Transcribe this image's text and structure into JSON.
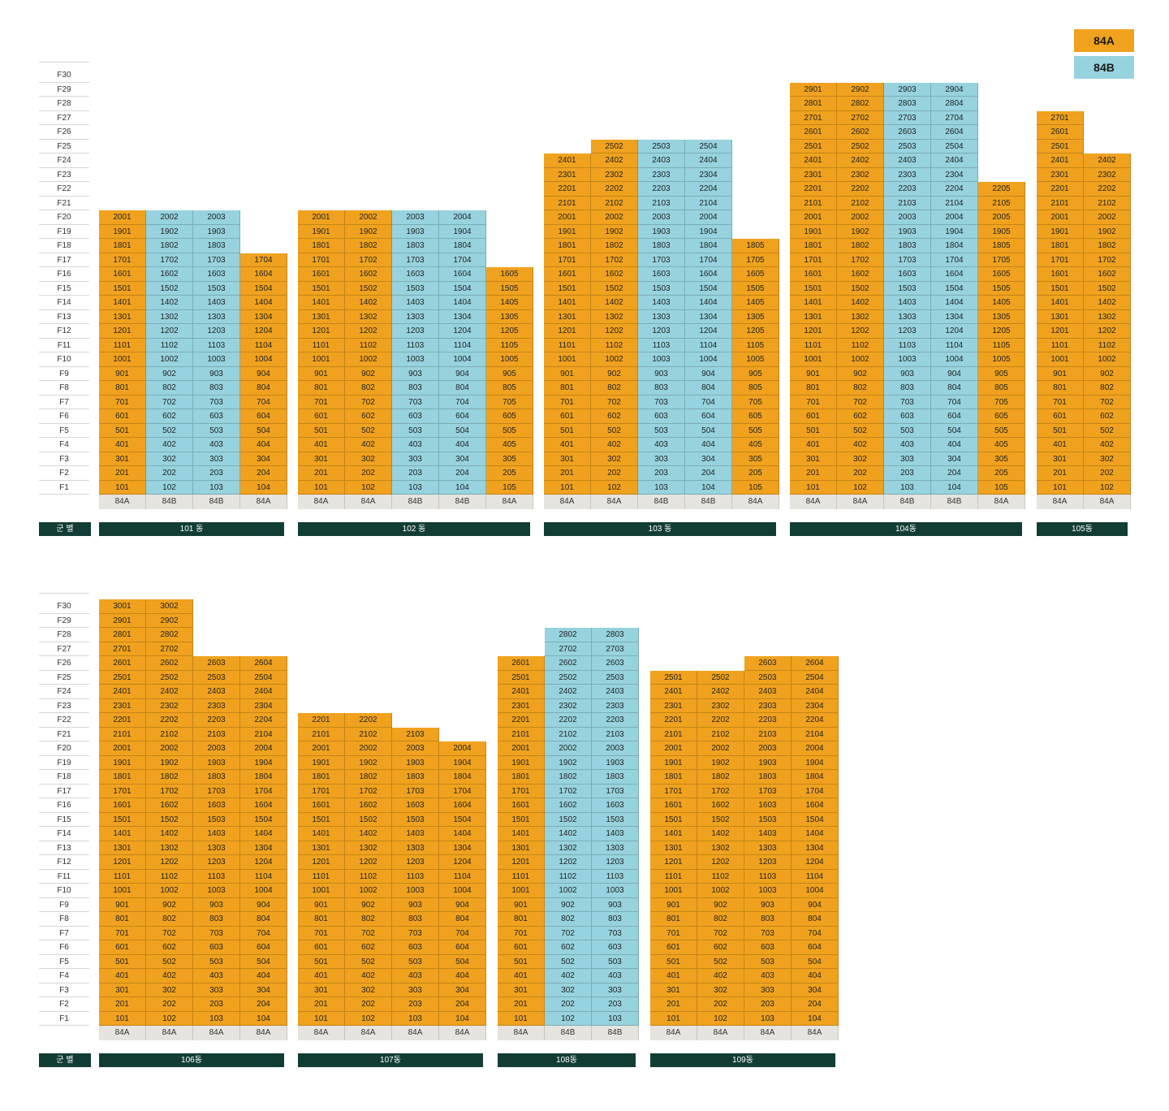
{
  "legend": [
    {
      "label": "84A",
      "color": "#f0a21e"
    },
    {
      "label": "84B",
      "color": "#97d3de"
    }
  ],
  "group_label": "군 별",
  "floor_prefix": "F",
  "sections": [
    {
      "max_floor": 30,
      "buildings": [
        {
          "name": "101 동",
          "lines": [
            {
              "line": 1,
              "type": "84A",
              "top": 20
            },
            {
              "line": 2,
              "type": "84B",
              "top": 20
            },
            {
              "line": 3,
              "type": "84B",
              "top": 20
            },
            {
              "line": 4,
              "type": "84A",
              "top": 17
            }
          ]
        },
        {
          "name": "102 동",
          "lines": [
            {
              "line": 1,
              "type": "84A",
              "top": 20
            },
            {
              "line": 2,
              "type": "84A",
              "top": 20
            },
            {
              "line": 3,
              "type": "84B",
              "top": 20
            },
            {
              "line": 4,
              "type": "84B",
              "top": 20
            },
            {
              "line": 5,
              "type": "84A",
              "top": 16
            }
          ]
        },
        {
          "name": "103 동",
          "lines": [
            {
              "line": 1,
              "type": "84A",
              "top": 24
            },
            {
              "line": 2,
              "type": "84A",
              "top": 25
            },
            {
              "line": 3,
              "type": "84B",
              "top": 25
            },
            {
              "line": 4,
              "type": "84B",
              "top": 25
            },
            {
              "line": 5,
              "type": "84A",
              "top": 18
            }
          ]
        },
        {
          "name": "104동",
          "lines": [
            {
              "line": 1,
              "type": "84A",
              "top": 29
            },
            {
              "line": 2,
              "type": "84A",
              "top": 29
            },
            {
              "line": 3,
              "type": "84B",
              "top": 29
            },
            {
              "line": 4,
              "type": "84B",
              "top": 29
            },
            {
              "line": 5,
              "type": "84A",
              "top": 22
            }
          ]
        },
        {
          "name": "105동",
          "lines": [
            {
              "line": 1,
              "type": "84A",
              "top": 27
            },
            {
              "line": 2,
              "type": "84A",
              "top": 24
            }
          ]
        }
      ]
    },
    {
      "max_floor": 30,
      "buildings": [
        {
          "name": "106동",
          "lines": [
            {
              "line": 1,
              "type": "84A",
              "top": 30
            },
            {
              "line": 2,
              "type": "84A",
              "top": 30
            },
            {
              "line": 3,
              "type": "84A",
              "top": 26
            },
            {
              "line": 4,
              "type": "84A",
              "top": 26
            }
          ]
        },
        {
          "name": "107동",
          "lines": [
            {
              "line": 1,
              "type": "84A",
              "top": 22
            },
            {
              "line": 2,
              "type": "84A",
              "top": 22
            },
            {
              "line": 3,
              "type": "84A",
              "top": 21
            },
            {
              "line": 4,
              "type": "84A",
              "top": 20
            }
          ]
        },
        {
          "name": "108동",
          "lines": [
            {
              "line": 1,
              "type": "84A",
              "top": 26
            },
            {
              "line": 2,
              "type": "84B",
              "top": 28
            },
            {
              "line": 3,
              "type": "84B",
              "top": 28
            }
          ]
        },
        {
          "name": "109동",
          "lines": [
            {
              "line": 1,
              "type": "84A",
              "top": 25
            },
            {
              "line": 2,
              "type": "84A",
              "top": 25
            },
            {
              "line": 3,
              "type": "84A",
              "top": 26
            },
            {
              "line": 4,
              "type": "84A",
              "top": 26
            }
          ]
        }
      ]
    }
  ]
}
